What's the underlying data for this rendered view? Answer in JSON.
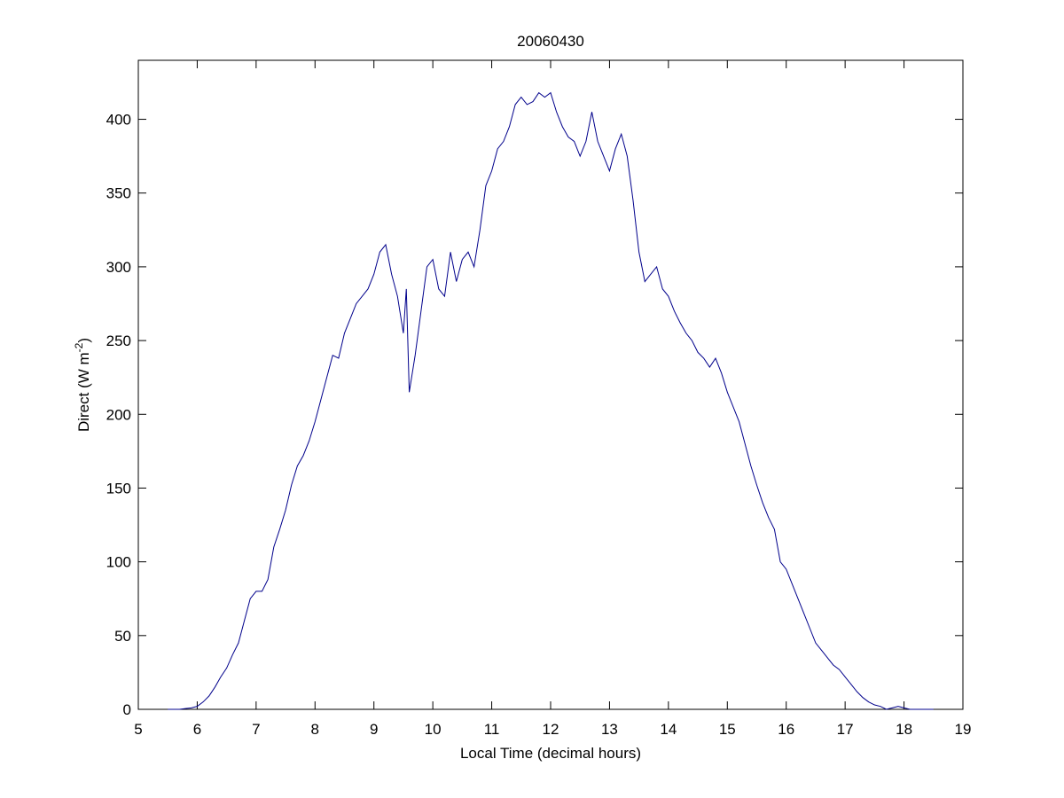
{
  "chart_data": {
    "type": "line",
    "title": "20060430",
    "xlabel": "Local Time (decimal hours)",
    "ylabel": [
      "Direct (W m",
      "-2",
      ")"
    ],
    "x": [
      5.5,
      5.6,
      5.7,
      5.8,
      5.9,
      6.0,
      6.1,
      6.2,
      6.3,
      6.4,
      6.5,
      6.6,
      6.7,
      6.8,
      6.9,
      7.0,
      7.1,
      7.2,
      7.3,
      7.4,
      7.5,
      7.6,
      7.7,
      7.8,
      7.9,
      8.0,
      8.1,
      8.2,
      8.3,
      8.4,
      8.5,
      8.6,
      8.7,
      8.8,
      8.9,
      9.0,
      9.1,
      9.2,
      9.3,
      9.4,
      9.5,
      9.55,
      9.6,
      9.7,
      9.8,
      9.9,
      10.0,
      10.1,
      10.2,
      10.3,
      10.4,
      10.5,
      10.6,
      10.7,
      10.8,
      10.9,
      11.0,
      11.1,
      11.2,
      11.3,
      11.4,
      11.5,
      11.6,
      11.7,
      11.8,
      11.9,
      12.0,
      12.1,
      12.2,
      12.3,
      12.4,
      12.5,
      12.6,
      12.7,
      12.8,
      12.9,
      13.0,
      13.1,
      13.2,
      13.3,
      13.4,
      13.5,
      13.6,
      13.7,
      13.8,
      13.9,
      14.0,
      14.1,
      14.2,
      14.3,
      14.4,
      14.5,
      14.6,
      14.7,
      14.8,
      14.9,
      15.0,
      15.1,
      15.2,
      15.3,
      15.4,
      15.5,
      15.6,
      15.7,
      15.8,
      15.9,
      16.0,
      16.1,
      16.2,
      16.3,
      16.4,
      16.5,
      16.6,
      16.7,
      16.8,
      16.9,
      17.0,
      17.1,
      17.2,
      17.3,
      17.4,
      17.5,
      17.6,
      17.7,
      17.8,
      17.9,
      18.0,
      18.1,
      18.2,
      18.3,
      18.4,
      18.5
    ],
    "series": [
      {
        "name": "Direct",
        "color": "#00008b",
        "values": [
          0,
          0,
          0,
          0.5,
          1,
          2,
          5,
          9,
          15,
          22,
          28,
          37,
          45,
          60,
          75,
          80,
          80,
          88,
          110,
          122,
          135,
          152,
          165,
          172,
          182,
          195,
          210,
          225,
          240,
          238,
          255,
          265,
          275,
          280,
          285,
          295,
          310,
          315,
          295,
          280,
          255,
          285,
          215,
          240,
          270,
          300,
          305,
          285,
          280,
          310,
          290,
          305,
          310,
          300,
          325,
          355,
          365,
          380,
          385,
          395,
          410,
          415,
          410,
          412,
          418,
          415,
          418,
          405,
          395,
          388,
          385,
          375,
          385,
          405,
          385,
          375,
          365,
          380,
          390,
          375,
          345,
          310,
          290,
          295,
          300,
          285,
          280,
          270,
          262,
          255,
          250,
          242,
          238,
          232,
          238,
          228,
          215,
          205,
          195,
          180,
          165,
          152,
          140,
          130,
          122,
          100,
          95,
          85,
          75,
          65,
          55,
          45,
          40,
          35,
          30,
          27,
          22,
          17,
          12,
          8,
          5,
          3,
          2,
          0,
          1,
          2,
          1,
          0,
          0,
          0,
          0,
          0
        ]
      }
    ],
    "xlim": [
      5,
      19
    ],
    "ylim": [
      0,
      440
    ],
    "xticks": [
      5,
      6,
      7,
      8,
      9,
      10,
      11,
      12,
      13,
      14,
      15,
      16,
      17,
      18,
      19
    ],
    "yticks": [
      0,
      50,
      100,
      150,
      200,
      250,
      300,
      350,
      400
    ],
    "grid": false
  }
}
